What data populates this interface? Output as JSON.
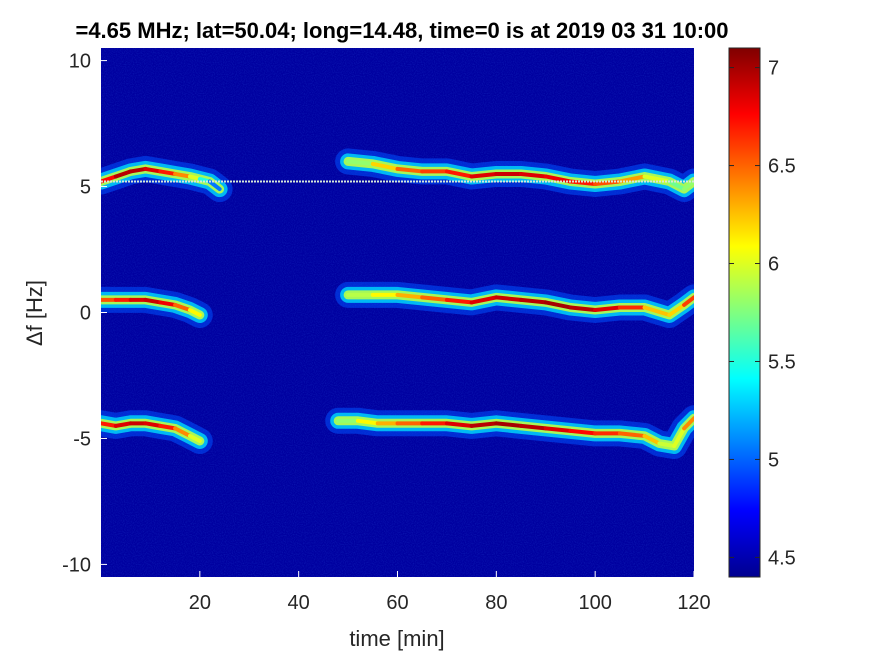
{
  "chart_data": {
    "type": "heatmap",
    "title": "=4.65 MHz;  lat=50.04; long=14.48, time=0 is at 2019 03 31 10:00",
    "xlabel": "time [min]",
    "ylabel": "Δf [Hz]",
    "xlim": [
      0,
      120
    ],
    "ylim": [
      -10.5,
      10.5
    ],
    "x_ticks": [
      20,
      40,
      60,
      80,
      100,
      120
    ],
    "y_ticks": [
      -10,
      -5,
      0,
      5,
      10
    ],
    "x_tick_labels": [
      "20",
      "40",
      "60",
      "80",
      "100",
      "120"
    ],
    "y_tick_labels": [
      "-10",
      "-5",
      "0",
      "5",
      "10"
    ],
    "colorbar": {
      "range": [
        4.4,
        7.1
      ],
      "ticks": [
        4.5,
        5,
        5.5,
        6,
        6.5,
        7
      ],
      "tick_labels": [
        "4.5",
        "5",
        "5.5",
        "6",
        "6.5",
        "7"
      ],
      "colormap": "jet"
    },
    "background_value": 4.45,
    "reference_line": {
      "y": 5.2,
      "x_range": [
        0,
        120
      ]
    },
    "traces": [
      {
        "x": [
          0,
          3,
          6,
          9,
          12,
          15,
          18,
          20,
          22,
          24
        ],
        "y": [
          5.2,
          5.4,
          5.6,
          5.7,
          5.6,
          5.5,
          5.4,
          5.3,
          5.2,
          4.9
        ],
        "peak": [
          6.6,
          6.9,
          7.0,
          6.9,
          6.8,
          6.6,
          6.2,
          5.8,
          5.2,
          4.9
        ]
      },
      {
        "x": [
          50,
          55,
          60,
          65,
          70,
          75,
          80,
          85,
          90,
          95,
          100,
          105,
          110,
          115,
          118,
          120
        ],
        "y": [
          6.0,
          5.9,
          5.7,
          5.6,
          5.6,
          5.4,
          5.5,
          5.5,
          5.4,
          5.2,
          5.1,
          5.2,
          5.4,
          5.2,
          4.9,
          5.2
        ],
        "peak": [
          5.6,
          6.0,
          6.4,
          6.6,
          6.6,
          6.8,
          6.9,
          6.9,
          6.8,
          6.8,
          6.6,
          6.5,
          6.2,
          5.8,
          5.6,
          6.0
        ]
      },
      {
        "x": [
          0,
          3,
          6,
          9,
          12,
          15,
          18,
          20
        ],
        "y": [
          0.5,
          0.5,
          0.5,
          0.5,
          0.4,
          0.3,
          0.1,
          -0.1
        ],
        "peak": [
          6.5,
          6.6,
          6.8,
          6.9,
          6.9,
          6.7,
          6.3,
          5.9
        ]
      },
      {
        "x": [
          50,
          55,
          60,
          65,
          70,
          75,
          80,
          85,
          90,
          95,
          100,
          105,
          110,
          115,
          118,
          120
        ],
        "y": [
          0.7,
          0.7,
          0.7,
          0.6,
          0.5,
          0.4,
          0.6,
          0.5,
          0.4,
          0.2,
          0.1,
          0.2,
          0.2,
          -0.1,
          0.3,
          0.6
        ],
        "peak": [
          5.8,
          6.0,
          6.2,
          6.4,
          6.6,
          6.8,
          6.9,
          6.9,
          7.0,
          7.0,
          6.9,
          6.8,
          6.5,
          6.0,
          6.4,
          6.8
        ]
      },
      {
        "x": [
          0,
          3,
          6,
          9,
          12,
          15,
          18,
          20
        ],
        "y": [
          -4.4,
          -4.5,
          -4.4,
          -4.4,
          -4.5,
          -4.6,
          -4.9,
          -5.1
        ],
        "peak": [
          6.6,
          6.8,
          6.9,
          6.9,
          6.8,
          6.6,
          6.2,
          5.8
        ]
      },
      {
        "x": [
          48,
          52,
          56,
          60,
          65,
          70,
          75,
          80,
          85,
          90,
          95,
          100,
          105,
          110,
          113,
          116,
          118,
          120
        ],
        "y": [
          -4.3,
          -4.3,
          -4.4,
          -4.4,
          -4.4,
          -4.4,
          -4.5,
          -4.4,
          -4.5,
          -4.6,
          -4.7,
          -4.8,
          -4.8,
          -4.9,
          -5.2,
          -5.3,
          -4.6,
          -4.2
        ],
        "peak": [
          5.6,
          6.0,
          6.2,
          6.4,
          6.6,
          6.8,
          6.9,
          7.0,
          7.0,
          6.9,
          6.8,
          6.7,
          6.6,
          6.4,
          6.1,
          5.8,
          6.2,
          6.6
        ]
      }
    ]
  }
}
